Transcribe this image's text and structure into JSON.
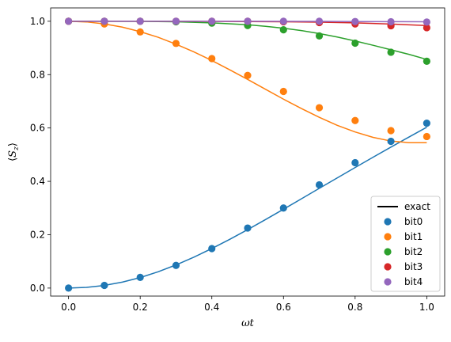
{
  "chart_data": {
    "type": "scatter",
    "title": "",
    "xlabel": "ωt",
    "ylabel": "⟨S_z⟩",
    "ylabel_parts": {
      "open": "⟨",
      "s": "S",
      "sub": "z",
      "close": "⟩"
    },
    "xlim": [
      -0.05,
      1.05
    ],
    "ylim": [
      -0.03,
      1.05
    ],
    "xticks": [
      0.0,
      0.2,
      0.4,
      0.6,
      0.8,
      1.0
    ],
    "xtick_labels": [
      "0.0",
      "0.2",
      "0.4",
      "0.6",
      "0.8",
      "1.0"
    ],
    "yticks": [
      0.0,
      0.2,
      0.4,
      0.6,
      0.8,
      1.0
    ],
    "ytick_labels": [
      "0.0",
      "0.2",
      "0.4",
      "0.6",
      "0.8",
      "1.0"
    ],
    "grid": false,
    "legend_position": "lower-right",
    "legend": [
      {
        "label": "exact",
        "kind": "line",
        "color": "#000000"
      },
      {
        "label": "bit0",
        "kind": "marker",
        "color": "#1f77b4"
      },
      {
        "label": "bit1",
        "kind": "marker",
        "color": "#ff7f0e"
      },
      {
        "label": "bit2",
        "kind": "marker",
        "color": "#2ca02c"
      },
      {
        "label": "bit3",
        "kind": "marker",
        "color": "#d62728"
      },
      {
        "label": "bit4",
        "kind": "marker",
        "color": "#9467bd"
      }
    ],
    "x": [
      0.0,
      0.1,
      0.2,
      0.3,
      0.4,
      0.5,
      0.6,
      0.7,
      0.8,
      0.9,
      1.0
    ],
    "series": [
      {
        "name": "bit0",
        "color": "#1f77b4",
        "values": [
          0.0,
          0.01,
          0.04,
          0.085,
          0.148,
          0.225,
          0.3,
          0.387,
          0.47,
          0.55,
          0.618
        ],
        "exact": [
          [
            0.0,
            0.0
          ],
          [
            0.05,
            0.0025
          ],
          [
            0.1,
            0.01
          ],
          [
            0.15,
            0.0223
          ],
          [
            0.2,
            0.0394
          ],
          [
            0.25,
            0.061
          ],
          [
            0.3,
            0.0868
          ],
          [
            0.35,
            0.116
          ],
          [
            0.4,
            0.1483
          ],
          [
            0.45,
            0.1827
          ],
          [
            0.5,
            0.2191
          ],
          [
            0.55,
            0.2568
          ],
          [
            0.6,
            0.2954
          ],
          [
            0.65,
            0.3345
          ],
          [
            0.7,
            0.3738
          ],
          [
            0.75,
            0.4129
          ],
          [
            0.8,
            0.4518
          ],
          [
            0.85,
            0.4903
          ],
          [
            0.9,
            0.5283
          ],
          [
            0.95,
            0.5659
          ],
          [
            1.0,
            0.603
          ]
        ]
      },
      {
        "name": "bit1",
        "color": "#ff7f0e",
        "values": [
          1.0,
          0.99,
          0.96,
          0.917,
          0.86,
          0.797,
          0.737,
          0.676,
          0.628,
          0.59,
          0.568
        ],
        "exact": [
          [
            0.0,
            1.0
          ],
          [
            0.05,
            0.9975
          ],
          [
            0.1,
            0.99
          ],
          [
            0.15,
            0.978
          ],
          [
            0.2,
            0.961
          ],
          [
            0.25,
            0.94
          ],
          [
            0.3,
            0.914
          ],
          [
            0.35,
            0.885
          ],
          [
            0.4,
            0.853
          ],
          [
            0.45,
            0.818
          ],
          [
            0.5,
            0.782
          ],
          [
            0.55,
            0.745
          ],
          [
            0.6,
            0.708
          ],
          [
            0.65,
            0.673
          ],
          [
            0.7,
            0.64
          ],
          [
            0.75,
            0.61
          ],
          [
            0.8,
            0.585
          ],
          [
            0.85,
            0.565
          ],
          [
            0.9,
            0.551
          ],
          [
            0.95,
            0.545
          ],
          [
            1.0,
            0.545
          ]
        ]
      },
      {
        "name": "bit2",
        "color": "#2ca02c",
        "values": [
          1.0,
          1.0,
          1.0,
          0.998,
          0.993,
          0.984,
          0.968,
          0.945,
          0.918,
          0.884,
          0.85
        ],
        "exact": [
          [
            0.0,
            1.0
          ],
          [
            0.1,
            1.0
          ],
          [
            0.2,
            0.9995
          ],
          [
            0.3,
            0.998
          ],
          [
            0.4,
            0.994
          ],
          [
            0.5,
            0.987
          ],
          [
            0.55,
            0.981
          ],
          [
            0.6,
            0.974
          ],
          [
            0.65,
            0.965
          ],
          [
            0.7,
            0.954
          ],
          [
            0.75,
            0.941
          ],
          [
            0.8,
            0.926
          ],
          [
            0.85,
            0.91
          ],
          [
            0.9,
            0.893
          ],
          [
            0.95,
            0.876
          ],
          [
            1.0,
            0.857
          ]
        ]
      },
      {
        "name": "bit3",
        "color": "#d62728",
        "values": [
          1.0,
          1.0,
          1.0,
          1.0,
          1.0,
          1.0,
          0.998,
          0.995,
          0.99,
          0.983,
          0.976
        ],
        "exact": [
          [
            0.0,
            1.0
          ],
          [
            0.2,
            1.0
          ],
          [
            0.4,
            0.9995
          ],
          [
            0.5,
            0.999
          ],
          [
            0.6,
            0.998
          ],
          [
            0.7,
            0.9965
          ],
          [
            0.8,
            0.994
          ],
          [
            0.9,
            0.9895
          ],
          [
            1.0,
            0.984
          ]
        ]
      },
      {
        "name": "bit4",
        "color": "#9467bd",
        "values": [
          1.0,
          1.0,
          1.0,
          1.0,
          1.0,
          1.0,
          1.0,
          1.0,
          0.999,
          0.998,
          0.997
        ],
        "exact": [
          [
            0.0,
            1.0
          ],
          [
            0.5,
            1.0
          ],
          [
            0.7,
            0.9995
          ],
          [
            0.8,
            0.999
          ],
          [
            0.9,
            0.9985
          ],
          [
            1.0,
            0.998
          ]
        ]
      }
    ]
  }
}
